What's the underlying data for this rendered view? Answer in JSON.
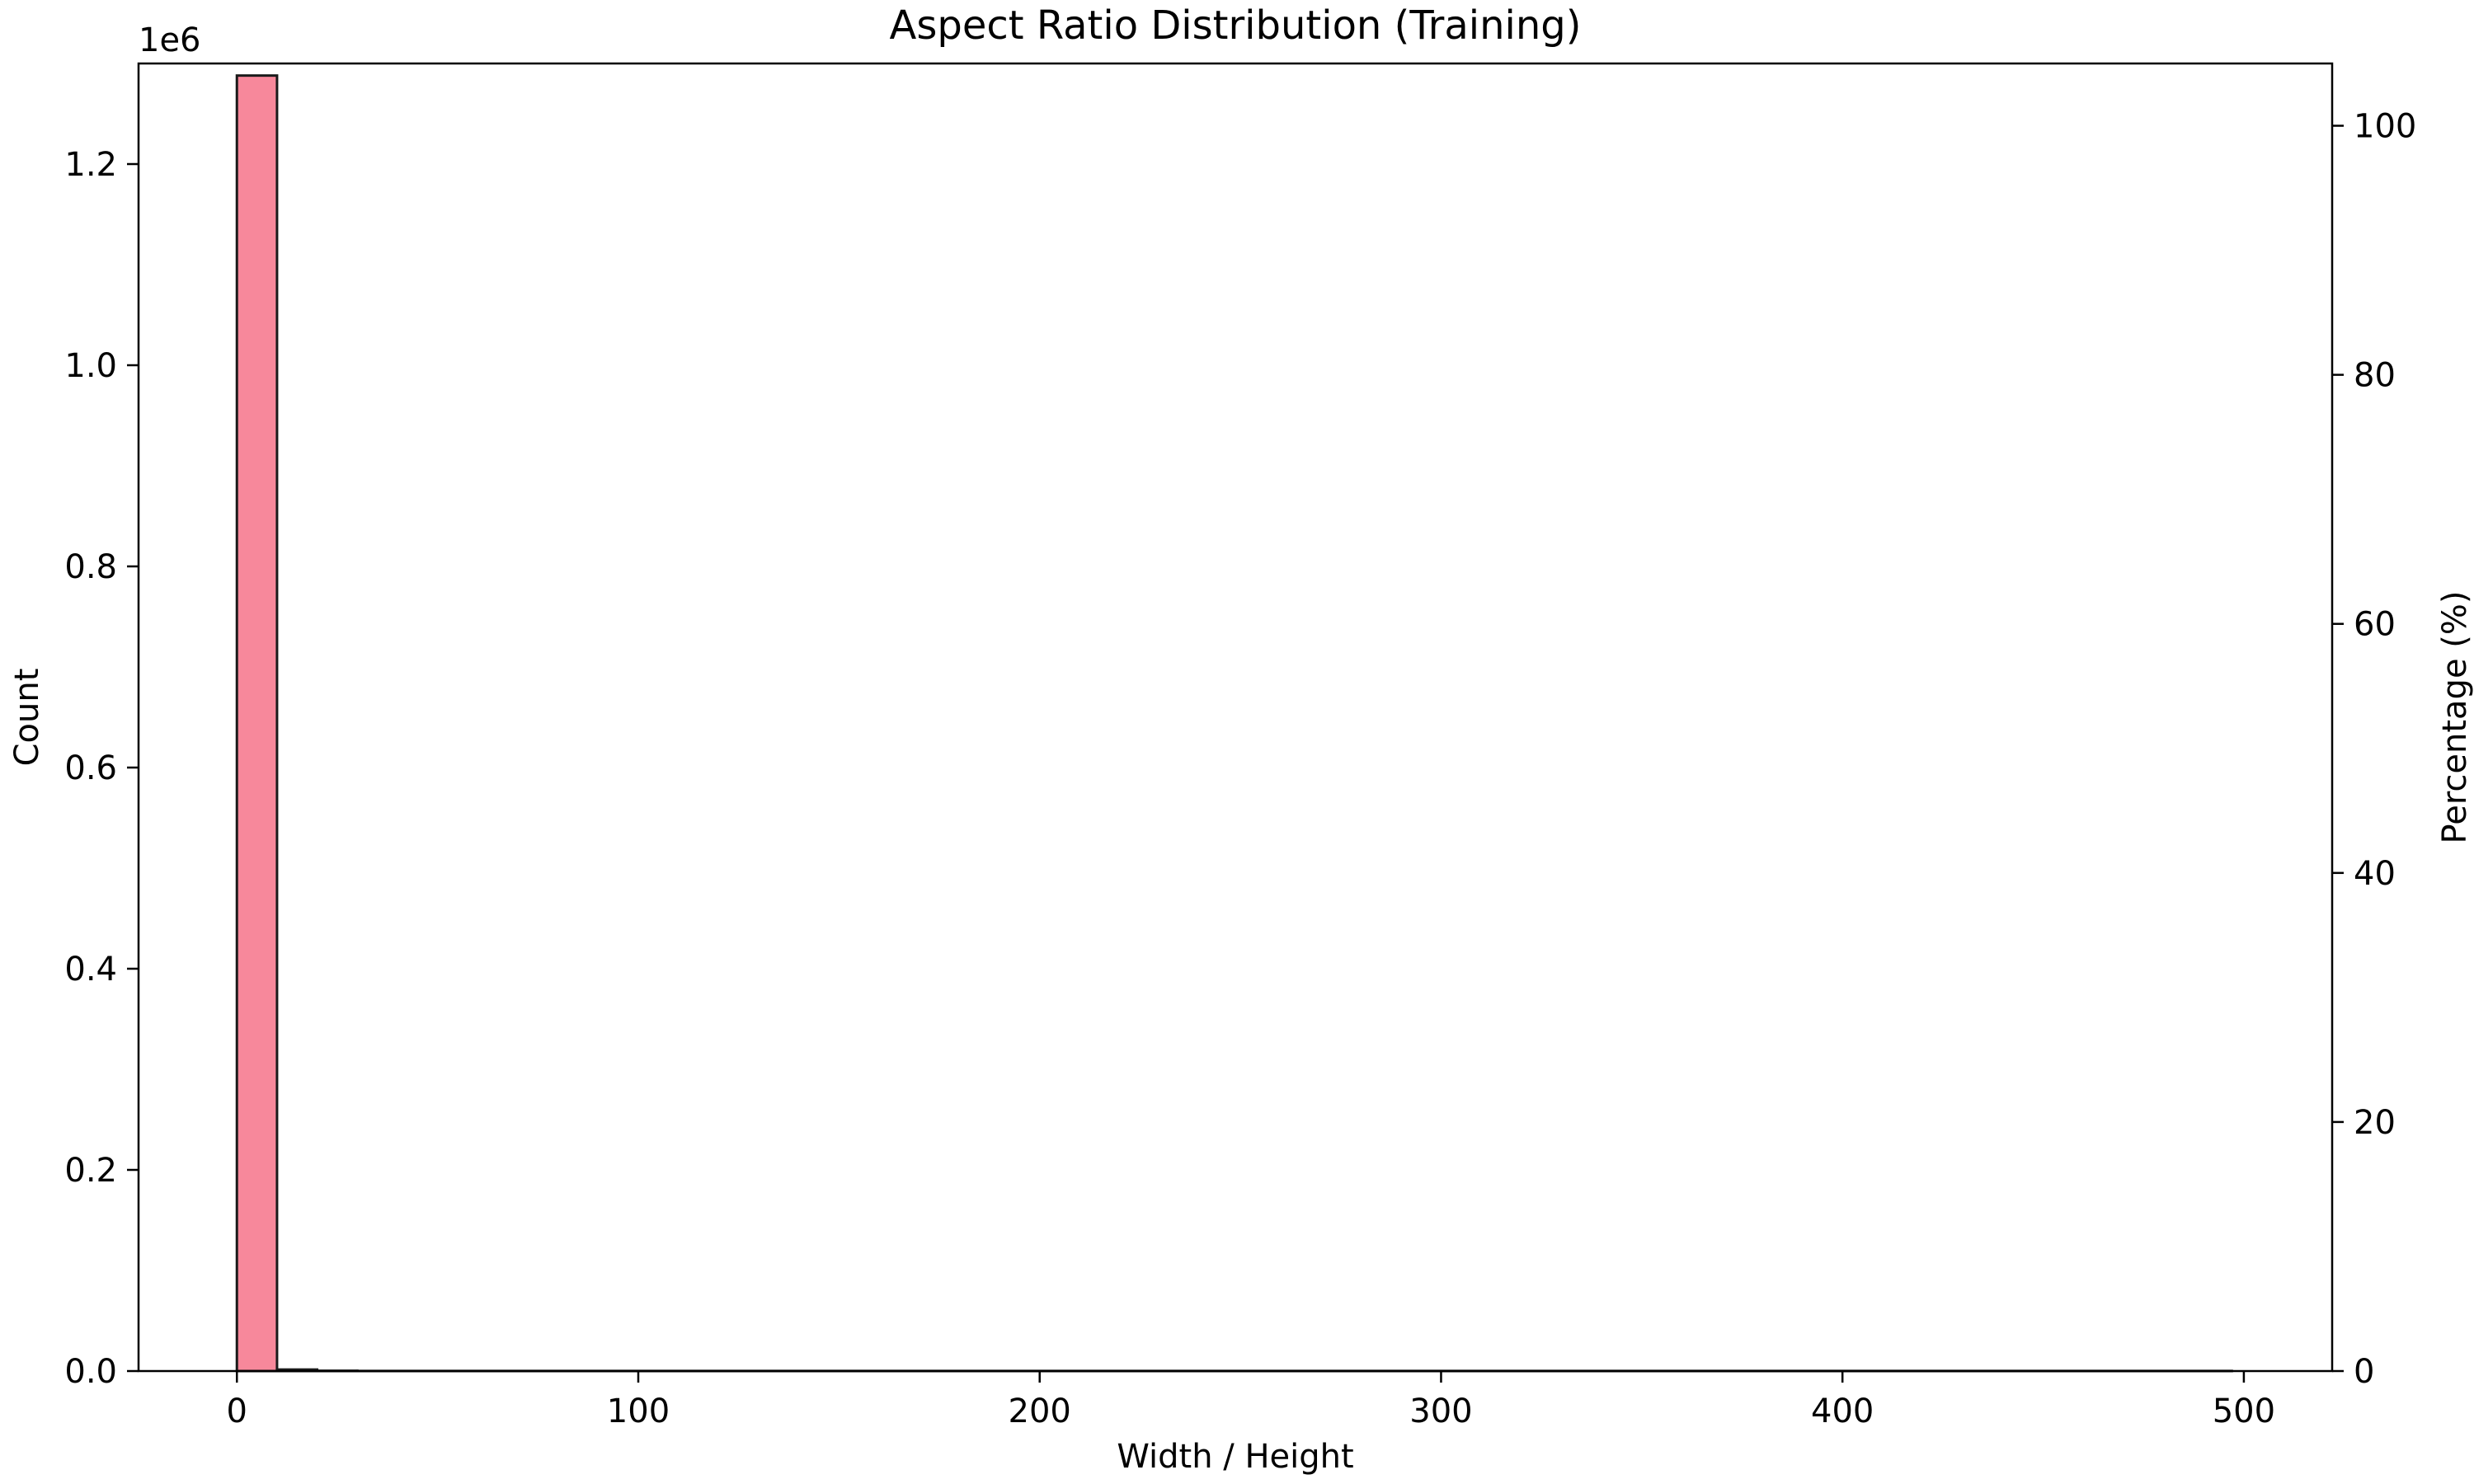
{
  "chart_data": {
    "type": "bar",
    "title": "Aspect Ratio Distribution (Training)",
    "xlabel": "Width / Height",
    "ylabel": "Count",
    "y2label": "Percentage (%)",
    "y_offset_text": "1e6",
    "xlim": [
      -24.5,
      522
    ],
    "ylim": [
      0,
      1.3
    ],
    "y2lim": [
      0,
      105
    ],
    "x_ticks": [
      0,
      100,
      200,
      300,
      400,
      500
    ],
    "x_tick_labels": [
      "0",
      "100",
      "200",
      "300",
      "400",
      "500"
    ],
    "y_ticks": [
      0.0,
      0.2,
      0.4,
      0.6,
      0.8,
      1.0,
      1.2
    ],
    "y_tick_labels": [
      "0.0",
      "0.2",
      "0.4",
      "0.6",
      "0.8",
      "1.0",
      "1.2"
    ],
    "y2_ticks": [
      0,
      20,
      40,
      60,
      80,
      100
    ],
    "y2_tick_labels": [
      "0",
      "20",
      "40",
      "60",
      "80",
      "100"
    ],
    "bin_width": 10,
    "bins": [
      {
        "x0": 0,
        "x1": 10,
        "value": 1.288
      },
      {
        "x0": 10,
        "x1": 20,
        "value": 0.0015
      },
      {
        "x0": 20,
        "x1": 30,
        "value": 0.0003
      },
      {
        "x0": 30,
        "x1": 497,
        "value": 0.0001
      }
    ],
    "grid": false,
    "legend": "none",
    "colors": {
      "bar_fill": "#f7889b",
      "bar_edge": "#1a1a1a",
      "axis": "#000000"
    }
  }
}
